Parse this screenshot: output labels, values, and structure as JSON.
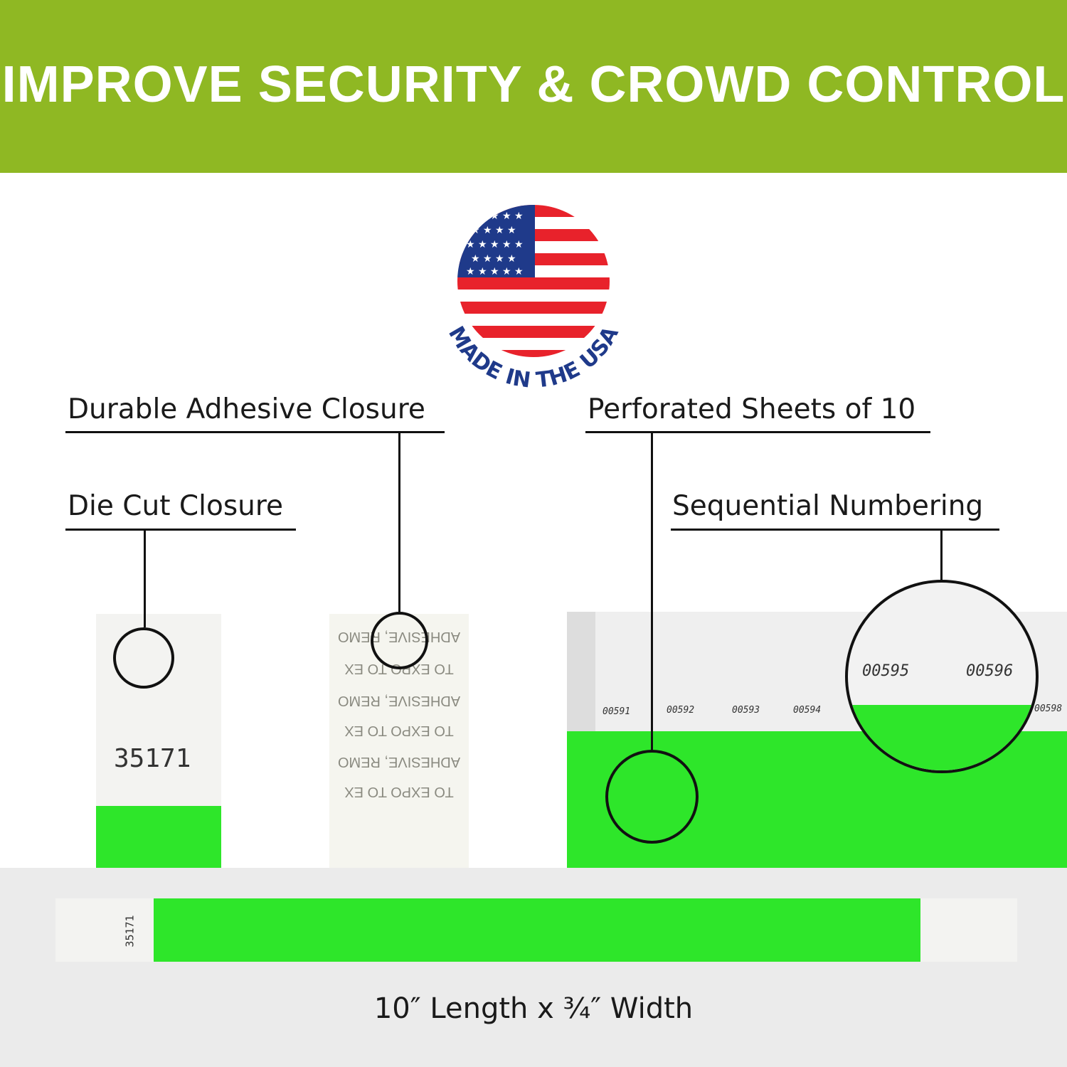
{
  "header": {
    "title": "IMPROVE SECURITY & CROWD CONTROL",
    "background": "#8fb823"
  },
  "badge": {
    "text": "MADE IN THE USA",
    "text_color": "#1f3a8a"
  },
  "callouts": [
    {
      "label": "Durable Adhesive Closure"
    },
    {
      "label": "Die Cut Closure"
    },
    {
      "label": "Perforated Sheets of 10"
    },
    {
      "label": "Sequential Numbering"
    }
  ],
  "single_band": {
    "number": "35171"
  },
  "adhesive_liner": {
    "lines": [
      "ADHESIVE, REMO",
      "TO EXPO   TO EX",
      "ADHESIVE, REMO",
      "TO EXPO   TO EX",
      "ADHESIVE, REMO",
      "TO EXPO   TO EX"
    ]
  },
  "sheet": {
    "numbers": [
      "00591",
      "00592",
      "00593",
      "00594",
      "00598"
    ],
    "zoom_numbers": [
      "00595",
      "00596"
    ]
  },
  "long_band": {
    "number": "35171"
  },
  "caption": "10″ Length x ¾″ Width",
  "colors": {
    "band_green": "#2ee62a"
  }
}
